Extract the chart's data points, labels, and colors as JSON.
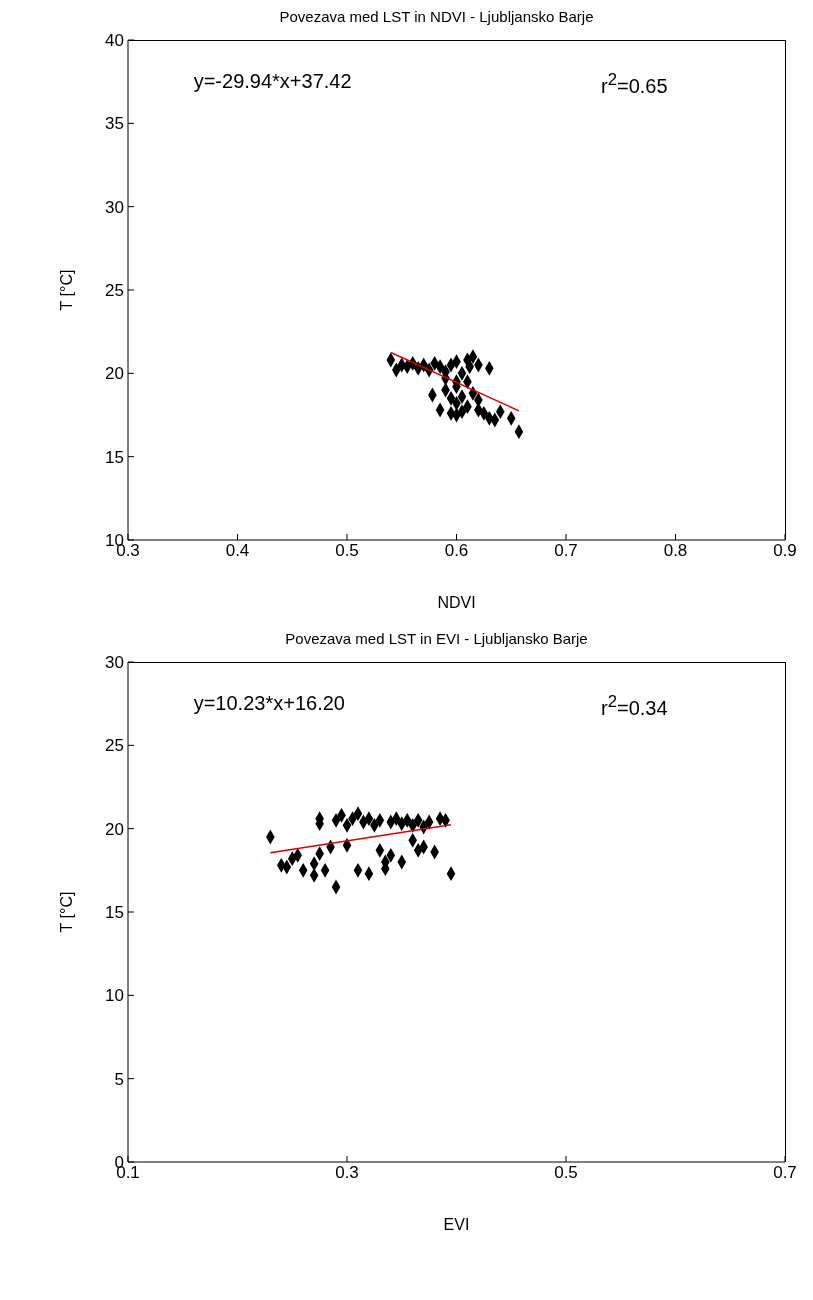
{
  "chart_data": [
    {
      "type": "scatter",
      "title": "Povezava med LST in NDVI - Ljubljansko Barje",
      "xlabel": "NDVI",
      "ylabel": "T [°C]",
      "xlim": [
        0.3,
        0.9
      ],
      "xticks": [
        0.3,
        0.4,
        0.5,
        0.6,
        0.7,
        0.8,
        0.9
      ],
      "ylim": [
        10,
        40
      ],
      "yticks": [
        10,
        15,
        20,
        25,
        30,
        35,
        40
      ],
      "grid": false,
      "marker": "diamond",
      "annotations": [
        "y=-29.94*x+37.42",
        "r$^{2}$=0.65"
      ],
      "series": [
        {
          "color": "#000000",
          "x": [
            0.54,
            0.545,
            0.55,
            0.555,
            0.56,
            0.565,
            0.57,
            0.575,
            0.58,
            0.585,
            0.59,
            0.59,
            0.595,
            0.6,
            0.6,
            0.605,
            0.61,
            0.612,
            0.615,
            0.62,
            0.63,
            0.59,
            0.595,
            0.6,
            0.605,
            0.61,
            0.615,
            0.62,
            0.62,
            0.625,
            0.63,
            0.635,
            0.64,
            0.65,
            0.657,
            0.585,
            0.595,
            0.6,
            0.605,
            0.578,
            0.6,
            0.61
          ],
          "values": [
            20.8,
            20.2,
            20.5,
            20.4,
            20.6,
            20.3,
            20.5,
            20.2,
            20.6,
            20.4,
            20.1,
            19.7,
            20.5,
            20.7,
            19.5,
            20.0,
            20.8,
            20.4,
            21.0,
            20.5,
            20.3,
            19.0,
            18.5,
            18.2,
            18.6,
            18.0,
            18.8,
            18.4,
            17.8,
            17.6,
            17.3,
            17.2,
            17.7,
            17.3,
            16.5,
            17.8,
            17.6,
            17.5,
            17.7,
            18.7,
            19.2,
            19.5
          ]
        },
        {
          "type": "line",
          "marker": "none",
          "color": "#e00000",
          "x": [
            0.54,
            0.657
          ],
          "values": [
            21.25,
            17.75
          ]
        }
      ]
    },
    {
      "type": "scatter",
      "title": "Povezava med LST in EVI - Ljubljansko Barje",
      "xlabel": "EVI",
      "ylabel": "T [°C]",
      "xlim": [
        0.1,
        0.7
      ],
      "xticks": [
        0.1,
        0.3,
        0.5,
        0.7
      ],
      "ylim": [
        0,
        30
      ],
      "yticks": [
        0,
        5,
        10,
        15,
        20,
        25,
        30
      ],
      "grid": false,
      "marker": "diamond",
      "annotations": [
        "y=10.23*x+16.20",
        "r$^{2}$=0.34"
      ],
      "series": [
        {
          "color": "#000000",
          "x": [
            0.23,
            0.24,
            0.245,
            0.25,
            0.255,
            0.26,
            0.27,
            0.27,
            0.275,
            0.275,
            0.275,
            0.28,
            0.285,
            0.29,
            0.29,
            0.295,
            0.3,
            0.3,
            0.305,
            0.31,
            0.31,
            0.315,
            0.32,
            0.32,
            0.325,
            0.33,
            0.33,
            0.335,
            0.335,
            0.34,
            0.34,
            0.345,
            0.35,
            0.35,
            0.355,
            0.36,
            0.36,
            0.365,
            0.365,
            0.37,
            0.37,
            0.375,
            0.38,
            0.385,
            0.39,
            0.395
          ],
          "values": [
            19.5,
            17.8,
            17.7,
            18.2,
            18.4,
            17.5,
            17.9,
            17.2,
            18.5,
            20.3,
            20.6,
            17.5,
            18.9,
            20.5,
            16.5,
            20.8,
            20.2,
            19.0,
            20.6,
            20.9,
            17.5,
            20.4,
            20.6,
            17.3,
            20.2,
            20.5,
            18.7,
            18.0,
            17.6,
            20.4,
            18.4,
            20.6,
            20.3,
            18.0,
            20.5,
            20.2,
            19.3,
            20.5,
            18.7,
            20.1,
            18.9,
            20.4,
            18.6,
            20.6,
            20.5,
            17.3
          ]
        },
        {
          "type": "line",
          "marker": "none",
          "color": "#e00000",
          "x": [
            0.23,
            0.395
          ],
          "values": [
            18.55,
            20.24
          ]
        }
      ]
    }
  ]
}
